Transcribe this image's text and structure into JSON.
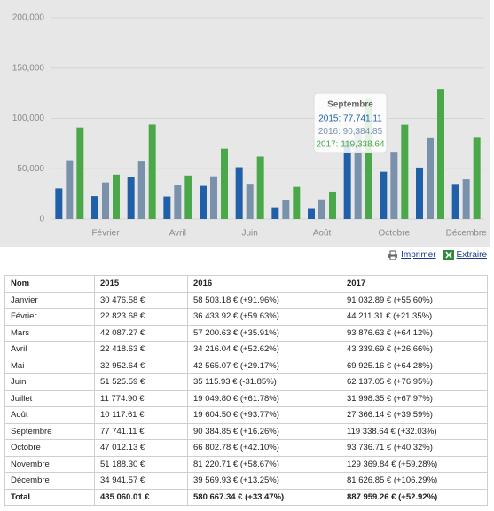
{
  "chart_data": {
    "type": "bar",
    "categories": [
      null,
      "Février",
      null,
      "Avril",
      null,
      "Juin",
      null,
      "Août",
      null,
      "Octobre",
      null,
      "Décembre"
    ],
    "series": [
      {
        "name": "2015",
        "color": "#1f60a8",
        "values": [
          30476.58,
          22823.68,
          42087.27,
          22418.63,
          32952.64,
          51525.59,
          11774.9,
          10117.61,
          77741.11,
          47012.13,
          51188.3,
          34941.57
        ]
      },
      {
        "name": "2016",
        "color": "#7a91ab",
        "values": [
          58503.18,
          36433.92,
          57200.63,
          34216.04,
          42565.07,
          35115.93,
          19049.8,
          19604.5,
          90384.85,
          66802.78,
          81220.71,
          39569.93
        ]
      },
      {
        "name": "2017",
        "color": "#4aa84a",
        "values": [
          91032.89,
          44211.31,
          93876.63,
          43339.69,
          69925.16,
          62137.05,
          31998.35,
          27366.14,
          119338.64,
          93736.71,
          129369.84,
          81626.85
        ]
      }
    ],
    "ylim": [
      0,
      200000
    ],
    "yticks": [
      0,
      {
        "value": 50000,
        "label": "50,000"
      },
      {
        "value": 100000,
        "label": "100,000"
      },
      {
        "value": 150000,
        "label": "150,000"
      },
      {
        "value": 200000,
        "label": "200,000"
      }
    ],
    "grid": true,
    "tooltip": {
      "title": "Septembre",
      "lines": [
        "2015: 77,741.11",
        "2016: 90,384.85",
        "2017: 119,338.64"
      ]
    }
  },
  "links": [
    "Imprimer",
    "Extraire"
  ],
  "table": {
    "header": [
      "Nom",
      "2015",
      "2016",
      "2017"
    ],
    "rows": [
      [
        "Janvier",
        "30 476.58 €",
        "58 503.18 € (+91.96%)",
        "91 032.89 € (+55.60%)"
      ],
      [
        "Février",
        "22 823.68 €",
        "36 433.92 € (+59.63%)",
        "44 211.31 € (+21.35%)"
      ],
      [
        "Mars",
        "42 087.27 €",
        "57 200.63 € (+35.91%)",
        "93 876.63 € (+64.12%)"
      ],
      [
        "Avril",
        "22 418.63 €",
        "34 216.04 € (+52.62%)",
        "43 339.69 € (+26.66%)"
      ],
      [
        "Mai",
        "32 952.64 €",
        "42 565.07 € (+29.17%)",
        "69 925.16 € (+64.28%)"
      ],
      [
        "Juin",
        "51 525.59 €",
        "35 115.93 € (-31.85%)",
        "62 137.05 € (+76.95%)"
      ],
      [
        "Juillet",
        "11 774.90 €",
        "19 049.80 € (+61.78%)",
        "31 998.35 € (+67.97%)"
      ],
      [
        "Août",
        "10 117.61 €",
        "19 604.50 € (+93.77%)",
        "27 366.14 € (+39.59%)"
      ],
      [
        "Septembre",
        "77 741.11 €",
        "90 384.85 € (+16.26%)",
        "119 338.64 € (+32.03%)"
      ],
      [
        "Octobre",
        "47 012.13 €",
        "66 802.78 € (+42.10%)",
        "93 736.71 € (+40.32%)"
      ],
      [
        "Novembre",
        "51 188.30 €",
        "81 220.71 € (+58.67%)",
        "129 369.84 € (+59.28%)"
      ],
      [
        "Décembre",
        "34 941.57 €",
        "39 569.93 € (+13.25%)",
        "81 626.85 € (+106.29%)"
      ]
    ],
    "total": [
      "Total",
      "435 060.01 €",
      "580 667.34 € (+33.47%)",
      "887 959.26 € (+52.92%)"
    ]
  }
}
